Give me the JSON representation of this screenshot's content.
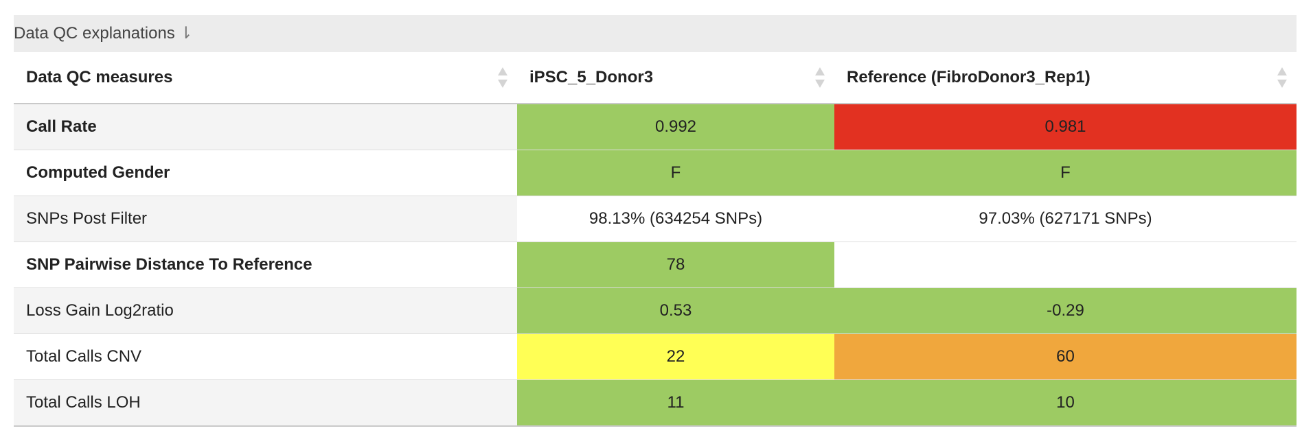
{
  "explanations": {
    "label": "Data QC explanations",
    "arrow": "⇂"
  },
  "table": {
    "headers": [
      "Data QC measures",
      "iPSC_5_Donor3",
      "Reference (FibroDonor3_Rep1)"
    ],
    "colors": {
      "green": "#9dcb63",
      "red": "#e23121",
      "yellow": "#ffff55",
      "orange": "#f0a73d",
      "none": "transparent",
      "stripe": "#f4f4f4"
    },
    "rows": [
      {
        "name": "Call Rate",
        "bold": true,
        "sample": "0.992",
        "sample_color": "green",
        "ref": "0.981",
        "ref_color": "red"
      },
      {
        "name": "Computed Gender",
        "bold": true,
        "sample": "F",
        "sample_color": "green",
        "ref": "F",
        "ref_color": "green"
      },
      {
        "name": "SNPs Post Filter",
        "bold": false,
        "sample": "98.13% (634254 SNPs)",
        "sample_color": "none",
        "ref": "97.03% (627171 SNPs)",
        "ref_color": "none"
      },
      {
        "name": "SNP Pairwise Distance To Reference",
        "bold": true,
        "sample": "78",
        "sample_color": "green",
        "ref": "",
        "ref_color": "none"
      },
      {
        "name": "Loss Gain Log2ratio",
        "bold": false,
        "sample": "0.53",
        "sample_color": "green",
        "ref": "-0.29",
        "ref_color": "green"
      },
      {
        "name": "Total Calls CNV",
        "bold": false,
        "sample": "22",
        "sample_color": "yellow",
        "ref": "60",
        "ref_color": "orange"
      },
      {
        "name": "Total Calls LOH",
        "bold": false,
        "sample": "11",
        "sample_color": "green",
        "ref": "10",
        "ref_color": "green"
      }
    ]
  }
}
